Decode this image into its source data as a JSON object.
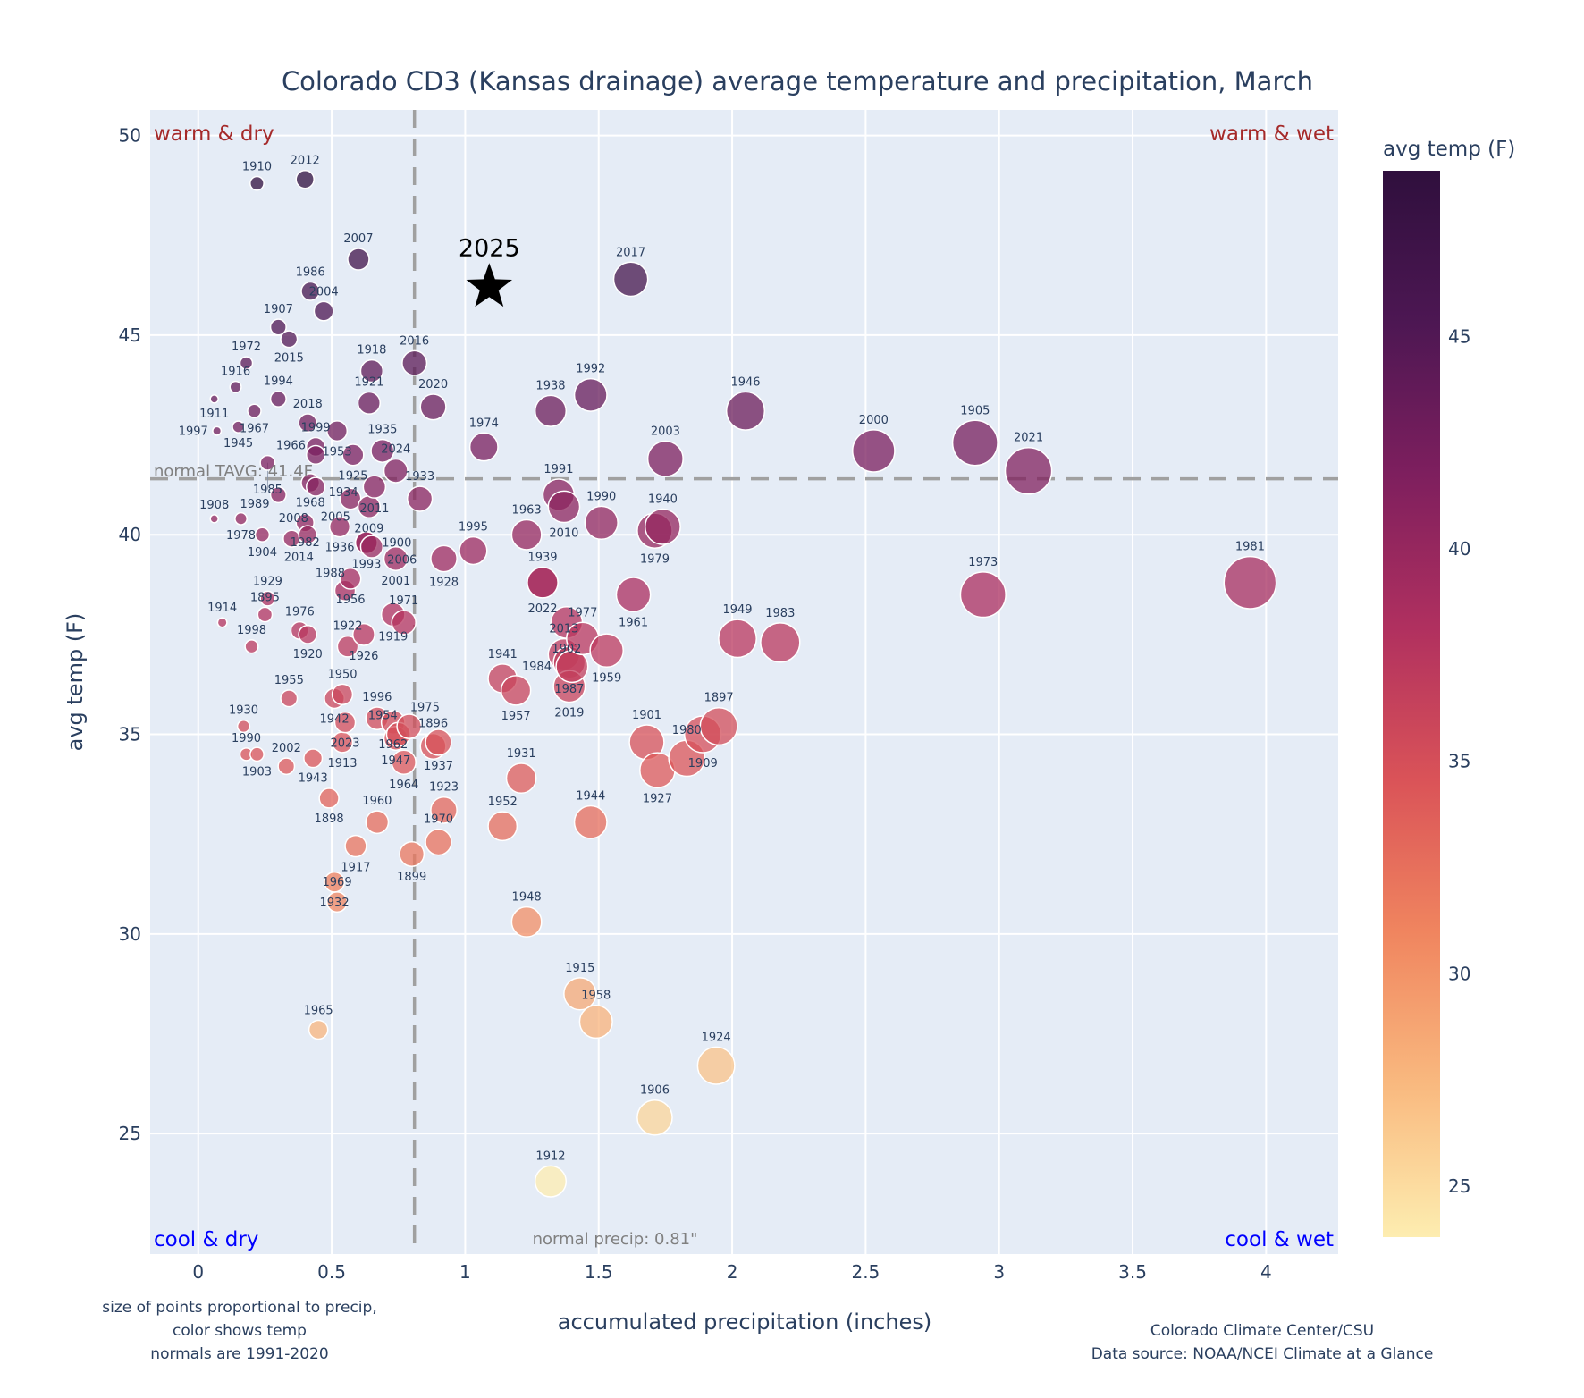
{
  "chart_data": {
    "type": "scatter",
    "title": "Colorado CD3 (Kansas drainage) average temperature and precipitation, March",
    "xlabel": "accumulated precipitation (inches)",
    "ylabel": "avg temp (F)",
    "xlim": [
      -0.18,
      4.27
    ],
    "ylim": [
      21.98,
      50.64
    ],
    "xticks": [
      0,
      0.5,
      1,
      1.5,
      2,
      2.5,
      3,
      3.5,
      4
    ],
    "xtick_labels": [
      "0",
      "0.5",
      "1",
      "1.5",
      "2",
      "2.5",
      "3",
      "3.5",
      "4"
    ],
    "yticks": [
      25,
      30,
      35,
      40,
      45,
      50
    ],
    "ytick_labels": [
      "25",
      "30",
      "35",
      "40",
      "45",
      "50"
    ],
    "grid": true,
    "colorbar": {
      "title": "avg temp (F)",
      "range": [
        23.8,
        48.9
      ],
      "ticks": [
        25,
        30,
        35,
        40,
        45
      ],
      "tick_labels": [
        "25",
        "30",
        "35",
        "40",
        "45"
      ],
      "scale": [
        "#fdedb0",
        "#f9b97f",
        "#f0855f",
        "#da5358",
        "#b0305f",
        "#7e1f5e",
        "#4d1753",
        "#2f0f3d"
      ]
    },
    "normals": {
      "temp": 41.4,
      "precip": 0.81,
      "temp_label": "normal TAVG: 41.4F",
      "precip_label": "normal precip: 0.81\""
    },
    "quadrant_labels": {
      "warm_dry": "warm & dry",
      "warm_wet": "warm & wet",
      "cool_dry": "cool & dry",
      "cool_wet": "cool & wet",
      "warm_color": "#a52a2a",
      "cool_color": "#0000ff"
    },
    "highlight": {
      "year": "2025",
      "precip": 1.09,
      "temp": 46.2
    },
    "points": [
      [
        "1910",
        0.22,
        48.8
      ],
      [
        "2012",
        0.4,
        48.9
      ],
      [
        "2007",
        0.6,
        46.9
      ],
      [
        "1986",
        0.42,
        46.1
      ],
      [
        "2004",
        0.47,
        45.6
      ],
      [
        "1907",
        0.3,
        45.2
      ],
      [
        "2015",
        0.34,
        44.9
      ],
      [
        "1972",
        0.18,
        44.3
      ],
      [
        "1916",
        0.14,
        43.7
      ],
      [
        "1911",
        0.06,
        43.4
      ],
      [
        "1994",
        0.3,
        43.4
      ],
      [
        "1967",
        0.21,
        43.1
      ],
      [
        "1945",
        0.15,
        42.7
      ],
      [
        "1997",
        0.07,
        42.6
      ],
      [
        "2018",
        0.41,
        42.8
      ],
      [
        "1953",
        0.52,
        42.6
      ],
      [
        "1999",
        0.44,
        42.2
      ],
      [
        "1966",
        0.44,
        42.0
      ],
      [
        "2016",
        0.81,
        44.3
      ],
      [
        "1918",
        0.65,
        44.1
      ],
      [
        "1921",
        0.64,
        43.3
      ],
      [
        "2020",
        0.88,
        43.2
      ],
      [
        "1938",
        1.32,
        43.1
      ],
      [
        "1992",
        1.47,
        43.5
      ],
      [
        "1946",
        2.05,
        43.1
      ],
      [
        "2000",
        2.53,
        42.1
      ],
      [
        "1905",
        2.91,
        42.3
      ],
      [
        "2021",
        3.11,
        41.6
      ],
      [
        "1974",
        1.07,
        42.2
      ],
      [
        "2003",
        1.75,
        41.9
      ],
      [
        "1925",
        0.58,
        42.0
      ],
      [
        "1935",
        0.69,
        42.1
      ],
      [
        "2024",
        0.74,
        41.6
      ],
      [
        "1985",
        0.26,
        41.8
      ],
      [
        "1968",
        0.42,
        41.3
      ],
      [
        "1934",
        0.44,
        41.2
      ],
      [
        "1989",
        0.3,
        41.0
      ],
      [
        "2005",
        0.57,
        40.9
      ],
      [
        "2011",
        0.66,
        41.2
      ],
      [
        "2009",
        0.64,
        40.7
      ],
      [
        "1933",
        0.83,
        40.9
      ],
      [
        "1991",
        1.35,
        41.0
      ],
      [
        "2010",
        1.37,
        40.7
      ],
      [
        "1990",
        1.51,
        40.3
      ],
      [
        "1979",
        1.71,
        40.1
      ],
      [
        "1940",
        1.74,
        40.2
      ],
      [
        "1963",
        1.23,
        40.0
      ],
      [
        "1995",
        1.03,
        39.6
      ],
      [
        "1928",
        0.92,
        39.4
      ],
      [
        "1908",
        0.06,
        40.4
      ],
      [
        "1978",
        0.16,
        40.4
      ],
      [
        "1904",
        0.24,
        40.0
      ],
      [
        "2014",
        0.35,
        39.9
      ],
      [
        "1982",
        0.4,
        40.3
      ],
      [
        "2008",
        0.41,
        40.0
      ],
      [
        "1936",
        0.53,
        40.2
      ],
      [
        "1993",
        0.63,
        39.8
      ],
      [
        "2006",
        0.65,
        39.7
      ],
      [
        "1900",
        0.63,
        39.8
      ],
      [
        "2001",
        0.74,
        39.4
      ],
      [
        "1956",
        0.57,
        38.9
      ],
      [
        "1988",
        0.55,
        38.6
      ],
      [
        "1939",
        1.29,
        38.8
      ],
      [
        "2022",
        1.29,
        38.8
      ],
      [
        "1961",
        1.63,
        38.5
      ],
      [
        "1981",
        3.94,
        38.8
      ],
      [
        "1973",
        2.94,
        38.5
      ],
      [
        "1949",
        2.02,
        37.4
      ],
      [
        "1983",
        2.18,
        37.3
      ],
      [
        "1902",
        1.38,
        37.8
      ],
      [
        "1977",
        1.44,
        37.4
      ],
      [
        "1959",
        1.53,
        37.1
      ],
      [
        "2013",
        1.37,
        37.0
      ],
      [
        "1987",
        1.39,
        36.8
      ],
      [
        "1984",
        1.4,
        36.7
      ],
      [
        "2019",
        1.39,
        36.2
      ],
      [
        "1941",
        1.14,
        36.4
      ],
      [
        "1957",
        1.19,
        36.1
      ],
      [
        "1929",
        0.26,
        38.4
      ],
      [
        "1895",
        0.25,
        38.0
      ],
      [
        "1914",
        0.09,
        37.8
      ],
      [
        "1998",
        0.2,
        37.2
      ],
      [
        "1976",
        0.38,
        37.6
      ],
      [
        "1920",
        0.41,
        37.5
      ],
      [
        "1919",
        0.73,
        38.0
      ],
      [
        "1971",
        0.77,
        37.8
      ],
      [
        "1926",
        0.62,
        37.5
      ],
      [
        "1922",
        0.56,
        37.2
      ],
      [
        "1955",
        0.34,
        35.9
      ],
      [
        "1950",
        0.54,
        36.0
      ],
      [
        "1942",
        0.51,
        35.9
      ],
      [
        "2023",
        0.55,
        35.3
      ],
      [
        "1913",
        0.54,
        34.8
      ],
      [
        "1996",
        0.67,
        35.4
      ],
      [
        "1962",
        0.73,
        35.3
      ],
      [
        "1947",
        0.74,
        34.9
      ],
      [
        "1975",
        0.79,
        35.2
      ],
      [
        "1954",
        0.75,
        35.0
      ],
      [
        "1937",
        0.9,
        34.8
      ],
      [
        "1896",
        0.88,
        34.7
      ],
      [
        "1964",
        0.77,
        34.3
      ],
      [
        "1930",
        0.17,
        35.2
      ],
      [
        "1990",
        0.18,
        34.5
      ],
      [
        "1903",
        0.22,
        34.5
      ],
      [
        "2002",
        0.33,
        34.2
      ],
      [
        "1943",
        0.43,
        34.4
      ],
      [
        "1898",
        0.49,
        33.4
      ],
      [
        "1960",
        0.67,
        32.8
      ],
      [
        "1917",
        0.59,
        32.2
      ],
      [
        "1932",
        0.51,
        31.3
      ],
      [
        "1969",
        0.52,
        30.8
      ],
      [
        "1899",
        0.8,
        32.0
      ],
      [
        "1970",
        0.9,
        32.3
      ],
      [
        "1923",
        0.92,
        33.1
      ],
      [
        "1965",
        0.45,
        27.6
      ],
      [
        "1931",
        1.21,
        33.9
      ],
      [
        "1952",
        1.14,
        32.7
      ],
      [
        "1944",
        1.47,
        32.8
      ],
      [
        "1948",
        1.23,
        30.3
      ],
      [
        "1915",
        1.43,
        28.5
      ],
      [
        "1958",
        1.49,
        27.8
      ],
      [
        "1924",
        1.94,
        26.7
      ],
      [
        "1906",
        1.71,
        25.4
      ],
      [
        "1912",
        1.32,
        23.8
      ],
      [
        "1901",
        1.68,
        34.8
      ],
      [
        "1927",
        1.72,
        34.1
      ],
      [
        "1980",
        1.83,
        34.4
      ],
      [
        "1909",
        1.89,
        35.0
      ],
      [
        "1897",
        1.95,
        35.2
      ],
      [
        "2017",
        1.62,
        46.4
      ]
    ]
  },
  "notes": {
    "left": [
      "size of points proportional to precip,",
      "color shows temp",
      "normals are 1991-2020"
    ],
    "right": [
      "Colorado Climate Center/CSU",
      "Data source: NOAA/NCEI Climate at a Glance"
    ]
  }
}
